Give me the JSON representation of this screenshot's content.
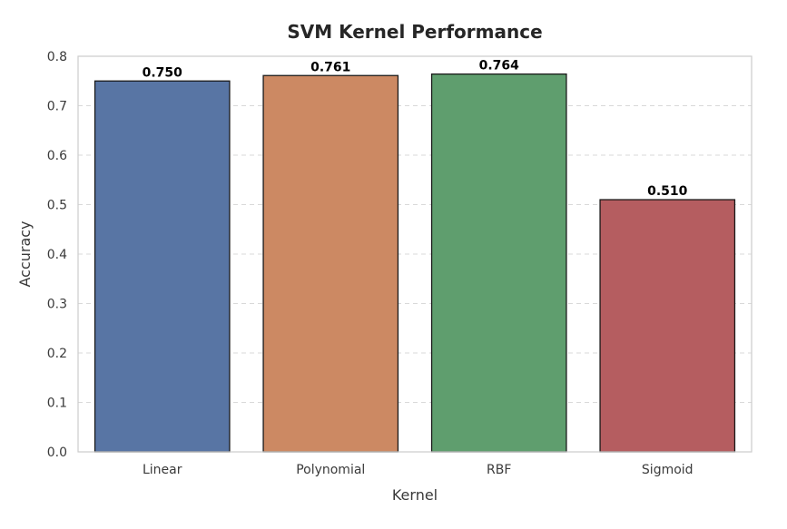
{
  "chart_data": {
    "type": "bar",
    "title": "SVM Kernel Performance",
    "xlabel": "Kernel",
    "ylabel": "Accuracy",
    "categories": [
      "Linear",
      "Polynomial",
      "RBF",
      "Sigmoid"
    ],
    "values": [
      0.75,
      0.761,
      0.764,
      0.51
    ],
    "value_labels": [
      "0.750",
      "0.761",
      "0.764",
      "0.510"
    ],
    "colors": [
      "#5875a4",
      "#cc8963",
      "#5f9e6e",
      "#b55d60"
    ],
    "ylim": [
      0,
      0.8
    ],
    "yticks": [
      0.0,
      0.1,
      0.2,
      0.3,
      0.4,
      0.5,
      0.6,
      0.7,
      0.8
    ],
    "ytick_labels": [
      "0.0",
      "0.1",
      "0.2",
      "0.3",
      "0.4",
      "0.5",
      "0.6",
      "0.7",
      "0.8"
    ],
    "grid": true
  }
}
